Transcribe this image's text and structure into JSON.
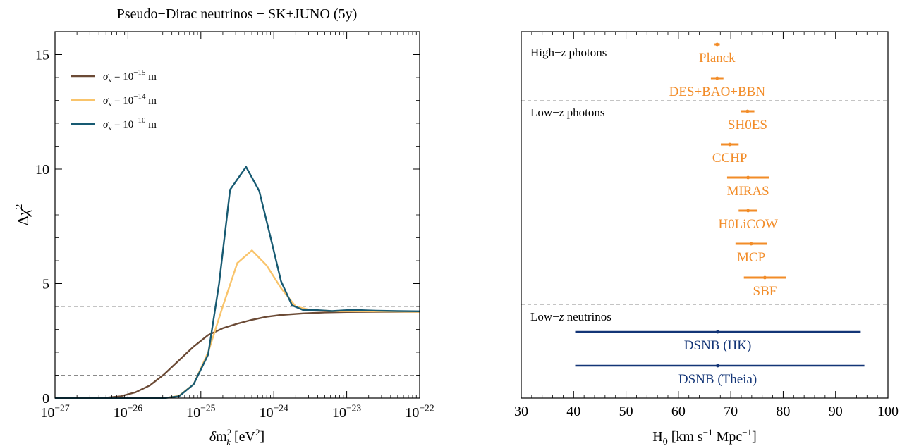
{
  "chart_data": [
    {
      "type": "line",
      "title": "Pseudo−Dirac neutrinos − SK+JUNO (5y)",
      "xlabel": "δm²_k [eV²]",
      "ylabel": "Δχ²",
      "xscale": "log",
      "xlim": [
        1e-27,
        1e-22
      ],
      "ylim": [
        0,
        16
      ],
      "xtick_labels": [
        "10−27",
        "10−26",
        "10−25",
        "10−24",
        "10−23",
        "10−22"
      ],
      "ytick_labels": [
        "0",
        "5",
        "10",
        "15"
      ],
      "reference_lines": [
        1,
        4,
        9
      ],
      "legend_position": "top-left",
      "grid": false,
      "series": [
        {
          "name": "σx = 10−15 m",
          "color": "#6b4a35",
          "points": [
            [
              -27,
              0
            ],
            [
              -26.5,
              0
            ],
            [
              -26.3,
              0.02
            ],
            [
              -26.1,
              0.08
            ],
            [
              -25.9,
              0.25
            ],
            [
              -25.7,
              0.55
            ],
            [
              -25.5,
              1.05
            ],
            [
              -25.3,
              1.65
            ],
            [
              -25.1,
              2.25
            ],
            [
              -24.9,
              2.75
            ],
            [
              -24.7,
              3.05
            ],
            [
              -24.5,
              3.25
            ],
            [
              -24.3,
              3.42
            ],
            [
              -24.1,
              3.55
            ],
            [
              -23.9,
              3.63
            ],
            [
              -23.6,
              3.7
            ],
            [
              -23.3,
              3.74
            ],
            [
              -23,
              3.76
            ],
            [
              -22.5,
              3.77
            ],
            [
              -22,
              3.77
            ]
          ]
        },
        {
          "name": "σx = 10−14 m",
          "color": "#f9c46b",
          "points": [
            [
              -27,
              0
            ],
            [
              -25.5,
              0
            ],
            [
              -25.3,
              0.1
            ],
            [
              -25.1,
              0.6
            ],
            [
              -24.9,
              2.0
            ],
            [
              -24.7,
              4.0
            ],
            [
              -24.5,
              5.9
            ],
            [
              -24.3,
              6.45
            ],
            [
              -24.1,
              5.8
            ],
            [
              -23.9,
              4.8
            ],
            [
              -23.7,
              4.0
            ],
            [
              -23.5,
              3.85
            ],
            [
              -23.2,
              3.8
            ],
            [
              -22.8,
              3.79
            ],
            [
              -22.4,
              3.78
            ],
            [
              -22,
              3.77
            ]
          ]
        },
        {
          "name": "σx = 10−10 m",
          "color": "#175a72",
          "points": [
            [
              -27,
              0
            ],
            [
              -25.5,
              0
            ],
            [
              -25.3,
              0.08
            ],
            [
              -25.1,
              0.6
            ],
            [
              -24.9,
              1.9
            ],
            [
              -24.75,
              5
            ],
            [
              -24.6,
              9.1
            ],
            [
              -24.38,
              10.1
            ],
            [
              -24.2,
              9.05
            ],
            [
              -24.05,
              7.1
            ],
            [
              -23.9,
              5.1
            ],
            [
              -23.75,
              4.05
            ],
            [
              -23.6,
              3.85
            ],
            [
              -23.4,
              3.84
            ],
            [
              -23.2,
              3.8
            ],
            [
              -23,
              3.84
            ],
            [
              -22.8,
              3.84
            ],
            [
              -22.6,
              3.82
            ],
            [
              -22.3,
              3.8
            ],
            [
              -22,
              3.79
            ]
          ]
        }
      ]
    },
    {
      "type": "scatter",
      "xlabel": "H₀ [km s−1 Mpc−1]",
      "xlim": [
        30,
        100
      ],
      "xtick_labels": [
        "30",
        "40",
        "50",
        "60",
        "70",
        "80",
        "90",
        "100"
      ],
      "groups": [
        {
          "label": "High−z photons"
        },
        {
          "label": "Low−z photons"
        },
        {
          "label": "Low−z neutrinos"
        }
      ],
      "series": [
        {
          "name": "Planck",
          "value": 67.4,
          "low": 66.9,
          "high": 67.9,
          "color": "#f28c28"
        },
        {
          "name": "DES+BAO+BBN",
          "value": 67.4,
          "low": 66.2,
          "high": 68.6,
          "color": "#f28c28"
        },
        {
          "name": "SH0ES",
          "value": 73.2,
          "low": 71.9,
          "high": 74.5,
          "color": "#f28c28"
        },
        {
          "name": "CCHP",
          "value": 69.8,
          "low": 68.1,
          "high": 71.5,
          "color": "#f28c28"
        },
        {
          "name": "MIRAS",
          "value": 73.3,
          "low": 69.3,
          "high": 77.3,
          "color": "#f28c28"
        },
        {
          "name": "H0LiCOW",
          "value": 73.3,
          "low": 71.5,
          "high": 75.1,
          "color": "#f28c28"
        },
        {
          "name": "MCP",
          "value": 73.9,
          "low": 70.9,
          "high": 76.9,
          "color": "#f28c28"
        },
        {
          "name": "SBF",
          "value": 76.5,
          "low": 72.5,
          "high": 80.5,
          "color": "#f28c28"
        },
        {
          "name": "DSNB (HK)",
          "value": 67.5,
          "low": 40.3,
          "high": 94.8,
          "color": "#133577"
        },
        {
          "name": "DSNB (Theia)",
          "value": 67.5,
          "low": 40.3,
          "high": 95.5,
          "color": "#133577"
        }
      ]
    }
  ]
}
